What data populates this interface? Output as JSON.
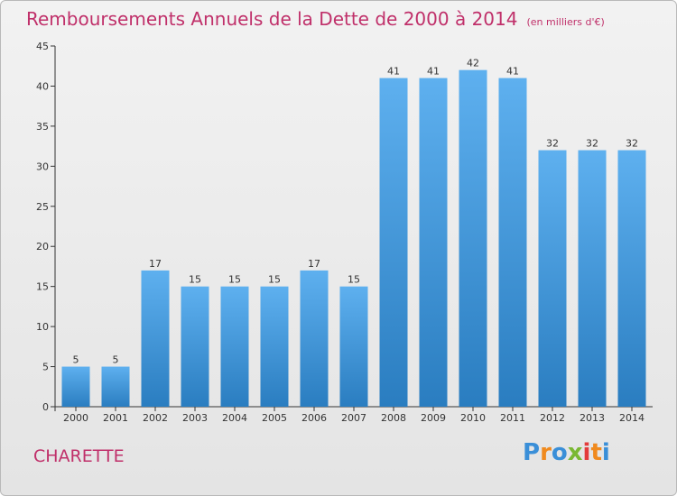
{
  "header": {
    "title": "Remboursements Annuels de la Dette de 2000 à 2014",
    "unit": "(en milliers d'€)"
  },
  "footer": {
    "place": "CHARETTE",
    "logo_letters": [
      "P",
      "r",
      "o",
      "x",
      "i",
      "t",
      "i"
    ]
  },
  "colors": {
    "title": "#c0306a",
    "bar_top": "#5eb0ef",
    "bar_bottom": "#2a7dc0",
    "axis": "#333333",
    "grid": "#cccccc"
  },
  "chart_data": {
    "type": "bar",
    "title": "Remboursements Annuels de la Dette de 2000 à 2014",
    "ylabel": "",
    "xlabel": "",
    "categories": [
      "2000",
      "2001",
      "2002",
      "2003",
      "2004",
      "2005",
      "2006",
      "2007",
      "2008",
      "2009",
      "2010",
      "2011",
      "2012",
      "2013",
      "2014"
    ],
    "values": [
      5,
      5,
      17,
      15,
      15,
      15,
      17,
      15,
      41,
      41,
      42,
      41,
      32,
      32,
      32
    ],
    "ylim": [
      0,
      45
    ],
    "yticks": [
      0,
      5,
      10,
      15,
      20,
      25,
      30,
      35,
      40,
      45
    ],
    "grid": false,
    "data_labels": true
  }
}
